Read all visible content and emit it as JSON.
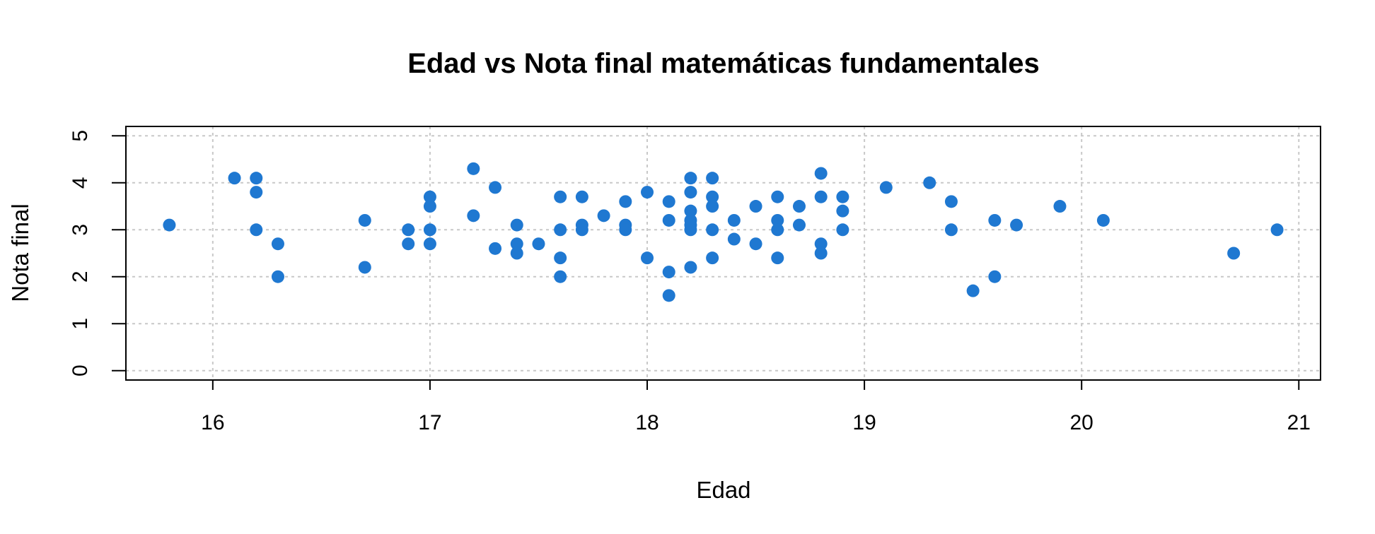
{
  "chart_data": {
    "type": "scatter",
    "title": "Edad vs Nota final matemáticas fundamentales",
    "xlabel": "Edad",
    "ylabel": "Nota final",
    "xlim": [
      15.6,
      21.1
    ],
    "ylim": [
      -0.2,
      5.2
    ],
    "xticks": [
      "16",
      "17",
      "18",
      "19",
      "20",
      "21"
    ],
    "yticks": [
      "0",
      "1",
      "2",
      "3",
      "4",
      "5"
    ],
    "grid": true,
    "point_color": "#1f78d1",
    "points": [
      [
        15.8,
        3.1
      ],
      [
        16.1,
        4.1
      ],
      [
        16.2,
        4.1
      ],
      [
        16.2,
        3.8
      ],
      [
        16.2,
        3.0
      ],
      [
        16.3,
        2.7
      ],
      [
        16.3,
        2.0
      ],
      [
        16.7,
        3.2
      ],
      [
        16.7,
        2.2
      ],
      [
        16.9,
        3.0
      ],
      [
        16.9,
        2.7
      ],
      [
        17.0,
        3.7
      ],
      [
        17.0,
        3.5
      ],
      [
        17.0,
        3.0
      ],
      [
        17.0,
        2.7
      ],
      [
        17.2,
        4.3
      ],
      [
        17.2,
        3.3
      ],
      [
        17.3,
        3.9
      ],
      [
        17.3,
        2.6
      ],
      [
        17.4,
        3.1
      ],
      [
        17.4,
        2.7
      ],
      [
        17.4,
        2.5
      ],
      [
        17.5,
        2.7
      ],
      [
        17.6,
        3.7
      ],
      [
        17.6,
        3.0
      ],
      [
        17.6,
        2.4
      ],
      [
        17.6,
        2.0
      ],
      [
        17.7,
        3.7
      ],
      [
        17.7,
        3.1
      ],
      [
        17.7,
        3.0
      ],
      [
        17.8,
        3.3
      ],
      [
        17.9,
        3.6
      ],
      [
        17.9,
        3.1
      ],
      [
        17.9,
        3.0
      ],
      [
        18.0,
        3.8
      ],
      [
        18.0,
        2.4
      ],
      [
        18.1,
        3.6
      ],
      [
        18.1,
        3.2
      ],
      [
        18.1,
        2.1
      ],
      [
        18.1,
        1.6
      ],
      [
        18.2,
        4.1
      ],
      [
        18.2,
        3.8
      ],
      [
        18.2,
        3.4
      ],
      [
        18.2,
        3.2
      ],
      [
        18.2,
        3.1
      ],
      [
        18.2,
        3.0
      ],
      [
        18.2,
        2.2
      ],
      [
        18.3,
        4.1
      ],
      [
        18.3,
        3.7
      ],
      [
        18.3,
        3.5
      ],
      [
        18.3,
        3.0
      ],
      [
        18.3,
        2.4
      ],
      [
        18.4,
        3.2
      ],
      [
        18.4,
        2.8
      ],
      [
        18.5,
        3.5
      ],
      [
        18.5,
        2.7
      ],
      [
        18.6,
        3.7
      ],
      [
        18.6,
        3.2
      ],
      [
        18.6,
        3.0
      ],
      [
        18.6,
        2.4
      ],
      [
        18.7,
        3.5
      ],
      [
        18.7,
        3.1
      ],
      [
        18.8,
        4.2
      ],
      [
        18.8,
        3.7
      ],
      [
        18.8,
        2.7
      ],
      [
        18.8,
        2.5
      ],
      [
        18.9,
        3.7
      ],
      [
        18.9,
        3.4
      ],
      [
        18.9,
        3.0
      ],
      [
        19.1,
        3.9
      ],
      [
        19.3,
        4.0
      ],
      [
        19.4,
        3.6
      ],
      [
        19.4,
        3.0
      ],
      [
        19.5,
        1.7
      ],
      [
        19.6,
        3.2
      ],
      [
        19.6,
        2.0
      ],
      [
        19.7,
        3.1
      ],
      [
        19.9,
        3.5
      ],
      [
        20.1,
        3.2
      ],
      [
        20.7,
        2.5
      ],
      [
        20.9,
        3.0
      ]
    ]
  }
}
